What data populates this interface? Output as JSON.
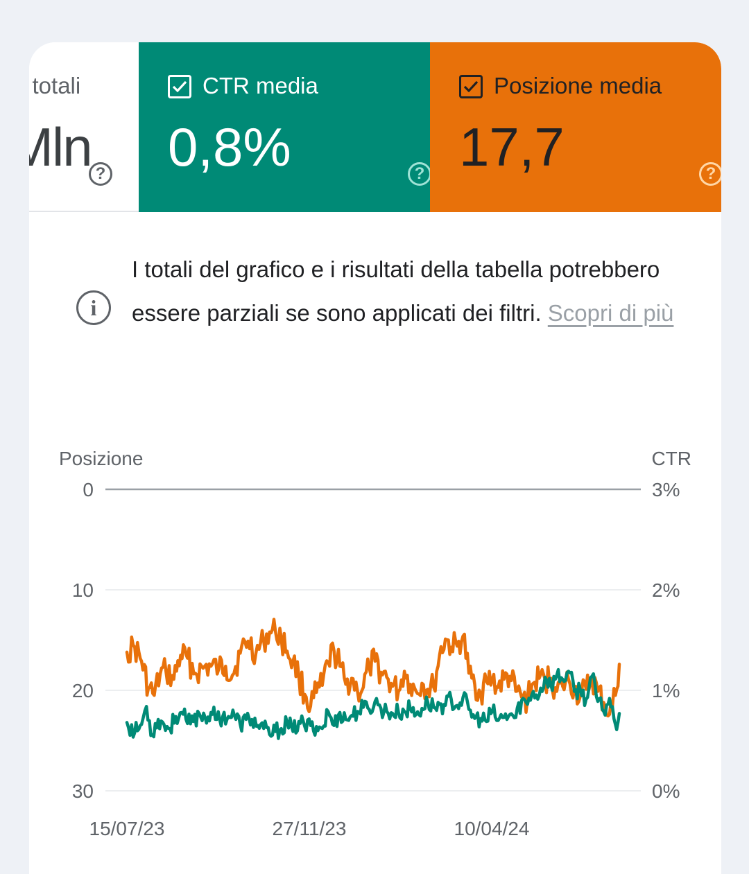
{
  "metrics": {
    "clicks": {
      "label": "i totali",
      "value": "Mln"
    },
    "ctr": {
      "label": "CTR media",
      "value": "0,8%",
      "color": "#008a76"
    },
    "position": {
      "label": "Posizione media",
      "value": "17,7",
      "color": "#e8710a"
    }
  },
  "notice": {
    "text": "I totali del grafico e i risultati della tabella potrebbero essere parziali se sono applicati dei filtri. ",
    "link": "Scopri di più"
  },
  "chart_data": {
    "type": "line",
    "ylabel_left": "Posizione",
    "ylabel_right": "CTR",
    "ylim_left": [
      30,
      0
    ],
    "ylim_right": [
      0,
      3
    ],
    "yticks_left": [
      "0",
      "10",
      "20",
      "30"
    ],
    "yticks_right": [
      "3%",
      "2%",
      "1%",
      "0%"
    ],
    "xticks": [
      "15/07/23",
      "27/11/23",
      "10/04/24"
    ],
    "grid": true,
    "series": [
      {
        "name": "Posizione media",
        "axis": "left",
        "color": "#e8710a",
        "anchors": [
          [
            0,
            16.2
          ],
          [
            8,
            15.7
          ],
          [
            15,
            17.1
          ],
          [
            22,
            19.8
          ],
          [
            28,
            20.5
          ],
          [
            34,
            18.4
          ],
          [
            40,
            18.1
          ],
          [
            48,
            18.9
          ],
          [
            55,
            16.5
          ],
          [
            62,
            16.8
          ],
          [
            70,
            18.3
          ],
          [
            78,
            17.8
          ],
          [
            86,
            17.6
          ],
          [
            94,
            17.9
          ],
          [
            101,
            17.6
          ],
          [
            108,
            18.5
          ],
          [
            116,
            16.3
          ],
          [
            124,
            15.1
          ],
          [
            132,
            16.3
          ],
          [
            140,
            15.1
          ],
          [
            146,
            14.2
          ],
          [
            152,
            14.1
          ],
          [
            158,
            14.8
          ],
          [
            164,
            16.1
          ],
          [
            170,
            17.1
          ],
          [
            176,
            18.6
          ],
          [
            182,
            20.4
          ],
          [
            188,
            21.6
          ],
          [
            194,
            20.2
          ],
          [
            200,
            19.5
          ],
          [
            206,
            17.2
          ],
          [
            212,
            16.1
          ],
          [
            218,
            17.6
          ],
          [
            224,
            19.4
          ],
          [
            230,
            18.8
          ],
          [
            236,
            20.1
          ],
          [
            242,
            19.7
          ],
          [
            248,
            17.7
          ],
          [
            254,
            17.1
          ],
          [
            260,
            18.2
          ],
          [
            266,
            18.7
          ],
          [
            272,
            19.6
          ],
          [
            278,
            20.1
          ],
          [
            284,
            18.1
          ],
          [
            290,
            19.4
          ],
          [
            296,
            20.1
          ],
          [
            302,
            19.3
          ],
          [
            308,
            19.9
          ],
          [
            314,
            19.7
          ],
          [
            320,
            16.5
          ],
          [
            326,
            14.9
          ],
          [
            332,
            15.7
          ],
          [
            338,
            15.6
          ],
          [
            344,
            14.6
          ],
          [
            350,
            18.3
          ],
          [
            356,
            19.4
          ],
          [
            362,
            20.3
          ],
          [
            368,
            19.1
          ],
          [
            374,
            18.9
          ],
          [
            380,
            19.7
          ],
          [
            386,
            18.9
          ],
          [
            392,
            18.6
          ],
          [
            398,
            20.1
          ],
          [
            404,
            20.7
          ],
          [
            410,
            20.9
          ],
          [
            416,
            19.3
          ],
          [
            422,
            18.8
          ],
          [
            428,
            18.9
          ],
          [
            434,
            18.8
          ],
          [
            440,
            20.1
          ],
          [
            446,
            19.6
          ],
          [
            452,
            18.9
          ],
          [
            458,
            19.9
          ],
          [
            464,
            20.6
          ],
          [
            470,
            19.9
          ],
          [
            476,
            18.9
          ],
          [
            482,
            20.1
          ],
          [
            488,
            21.2
          ],
          [
            494,
            22.4
          ],
          [
            500,
            20.5
          ],
          [
            504,
            17.4
          ]
        ]
      },
      {
        "name": "CTR media",
        "axis": "right",
        "color": "#008a76",
        "anchors": [
          [
            0,
            0.68
          ],
          [
            8,
            0.58
          ],
          [
            15,
            0.66
          ],
          [
            20,
            0.84
          ],
          [
            26,
            0.56
          ],
          [
            32,
            0.71
          ],
          [
            38,
            0.66
          ],
          [
            44,
            0.62
          ],
          [
            50,
            0.74
          ],
          [
            56,
            0.78
          ],
          [
            62,
            0.67
          ],
          [
            68,
            0.69
          ],
          [
            74,
            0.77
          ],
          [
            80,
            0.73
          ],
          [
            86,
            0.78
          ],
          [
            92,
            0.71
          ],
          [
            98,
            0.74
          ],
          [
            104,
            0.74
          ],
          [
            110,
            0.75
          ],
          [
            116,
            0.66
          ],
          [
            122,
            0.71
          ],
          [
            128,
            0.71
          ],
          [
            134,
            0.65
          ],
          [
            140,
            0.62
          ],
          [
            146,
            0.56
          ],
          [
            152,
            0.59
          ],
          [
            158,
            0.62
          ],
          [
            164,
            0.68
          ],
          [
            170,
            0.59
          ],
          [
            176,
            0.69
          ],
          [
            182,
            0.64
          ],
          [
            188,
            0.65
          ],
          [
            194,
            0.64
          ],
          [
            200,
            0.62
          ],
          [
            206,
            0.79
          ],
          [
            212,
            0.65
          ],
          [
            218,
            0.78
          ],
          [
            224,
            0.71
          ],
          [
            230,
            0.75
          ],
          [
            236,
            0.79
          ],
          [
            242,
            0.83
          ],
          [
            248,
            0.81
          ],
          [
            254,
            0.89
          ],
          [
            260,
            0.82
          ],
          [
            266,
            0.79
          ],
          [
            272,
            0.77
          ],
          [
            278,
            0.78
          ],
          [
            284,
            0.79
          ],
          [
            290,
            0.82
          ],
          [
            296,
            0.76
          ],
          [
            302,
            0.82
          ],
          [
            308,
            0.88
          ],
          [
            314,
            0.83
          ],
          [
            320,
            0.86
          ],
          [
            326,
            0.85
          ],
          [
            332,
            0.91
          ],
          [
            338,
            0.85
          ],
          [
            344,
            0.93
          ],
          [
            350,
            0.81
          ],
          [
            356,
            0.72
          ],
          [
            362,
            0.72
          ],
          [
            368,
            0.69
          ],
          [
            374,
            0.79
          ],
          [
            380,
            0.7
          ],
          [
            386,
            0.73
          ],
          [
            392,
            0.76
          ],
          [
            398,
            0.73
          ],
          [
            404,
            0.9
          ],
          [
            410,
            0.86
          ],
          [
            416,
            0.99
          ],
          [
            422,
            0.95
          ],
          [
            428,
            1.13
          ],
          [
            434,
            1.05
          ],
          [
            440,
            1.15
          ],
          [
            446,
            1.11
          ],
          [
            452,
            1.19
          ],
          [
            458,
            0.99
          ],
          [
            464,
            1.01
          ],
          [
            470,
            0.91
          ],
          [
            476,
            1.14
          ],
          [
            482,
            0.89
          ],
          [
            488,
            0.79
          ],
          [
            494,
            0.92
          ],
          [
            500,
            0.66
          ],
          [
            504,
            0.77
          ]
        ]
      }
    ]
  }
}
